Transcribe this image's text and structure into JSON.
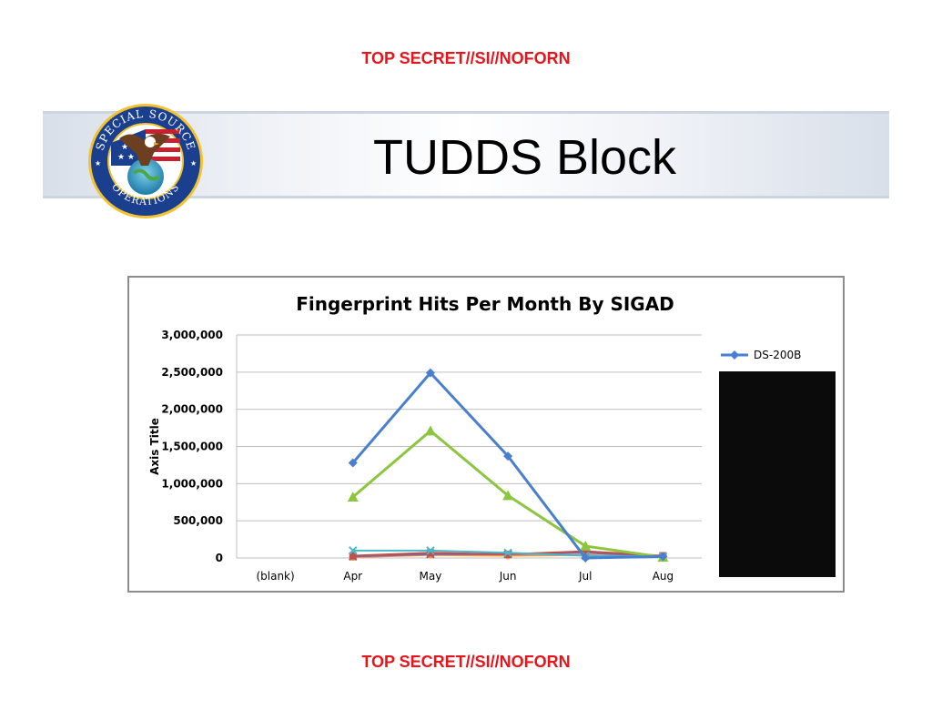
{
  "classification": {
    "top": "TOP SECRET//SI//NOFORN",
    "bottom": "TOP SECRET//SI//NOFORN"
  },
  "slide": {
    "title": "TUDDS Block",
    "seal_text_top": "SPECIAL SOURCE",
    "seal_text_bottom": "OPERATIONS"
  },
  "colors": {
    "classification": "#e8141b",
    "series_blue": "#4a7fcf",
    "series_green": "#8cc63e",
    "series_teal": "#4bb8c8",
    "series_red": "#c0504d",
    "series_purple": "#8064a2",
    "series_orange": "#f79646",
    "redaction": "#0b0b0b"
  },
  "chart_data": {
    "type": "line",
    "title": "Fingerprint Hits Per Month By SIGAD",
    "xlabel": "",
    "ylabel": "Axis Title",
    "categories": [
      "(blank)",
      "Apr",
      "May",
      "Jun",
      "Jul",
      "Aug"
    ],
    "ylim": [
      0,
      3000000
    ],
    "yticks": [
      0,
      500000,
      1000000,
      1500000,
      2000000,
      2500000,
      3000000
    ],
    "ytick_labels": [
      "0",
      "500,000",
      "1,000,000",
      "1,500,000",
      "2,000,000",
      "2,500,000",
      "3,000,000"
    ],
    "grid": true,
    "legend_position": "right",
    "legend_visible": [
      "DS-200B"
    ],
    "series": [
      {
        "name": "DS-200B",
        "color": "#4a7fcf",
        "marker": "diamond",
        "values": [
          null,
          1280000,
          2490000,
          1370000,
          0,
          20000
        ]
      },
      {
        "color": "#8cc63e",
        "marker": "triangle",
        "values": [
          null,
          820000,
          1710000,
          840000,
          160000,
          10000
        ]
      },
      {
        "color": "#4bb8c8",
        "marker": "x",
        "values": [
          null,
          100000,
          100000,
          70000,
          30000,
          20000
        ]
      },
      {
        "color": "#c0504d",
        "marker": "square",
        "values": [
          null,
          30000,
          70000,
          50000,
          90000,
          30000
        ]
      },
      {
        "color": "#8064a2",
        "marker": "x",
        "values": [
          null,
          20000,
          50000,
          50000,
          70000,
          20000
        ]
      },
      {
        "color": "#f79646",
        "marker": "circle",
        "values": [
          null,
          10000,
          40000,
          30000,
          40000,
          10000
        ]
      }
    ]
  }
}
